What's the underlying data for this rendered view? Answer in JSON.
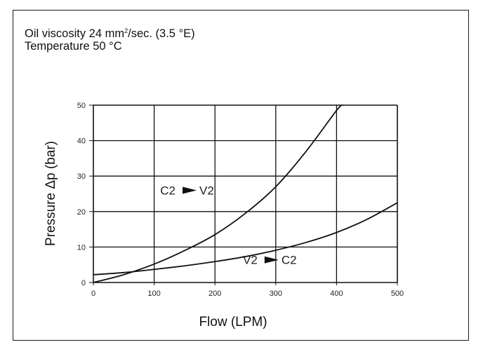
{
  "notes": {
    "viscosity_prefix": "Oil viscosity 24 mm",
    "viscosity_sup": "2",
    "viscosity_suffix": "/sec. (3.5 °E)",
    "temperature": "Temperature 50 °C"
  },
  "chart_data": {
    "type": "line",
    "title": "",
    "xlabel": "Flow (LPM)",
    "ylabel": "Pressure Δp (bar)",
    "xlim": [
      0,
      500
    ],
    "ylim": [
      0,
      50
    ],
    "x_ticks": [
      0,
      100,
      200,
      300,
      400,
      500
    ],
    "y_ticks": [
      0,
      10,
      20,
      30,
      40,
      50
    ],
    "grid": true,
    "series": [
      {
        "name": "C2 ► V2",
        "label_parts": [
          "C2",
          "V2"
        ],
        "x": [
          0,
          50,
          100,
          150,
          200,
          250,
          300,
          350,
          400,
          410
        ],
        "y": [
          0,
          2.2,
          5.2,
          9.0,
          13.5,
          19.5,
          27.0,
          37.0,
          48.5,
          50
        ]
      },
      {
        "name": "V2 ► C2",
        "label_parts": [
          "V2",
          "C2"
        ],
        "x": [
          0,
          50,
          100,
          150,
          200,
          250,
          300,
          350,
          400,
          450,
          500
        ],
        "y": [
          2.2,
          2.8,
          3.7,
          4.7,
          5.9,
          7.3,
          9.1,
          11.3,
          14.1,
          17.8,
          22.5
        ]
      }
    ]
  }
}
